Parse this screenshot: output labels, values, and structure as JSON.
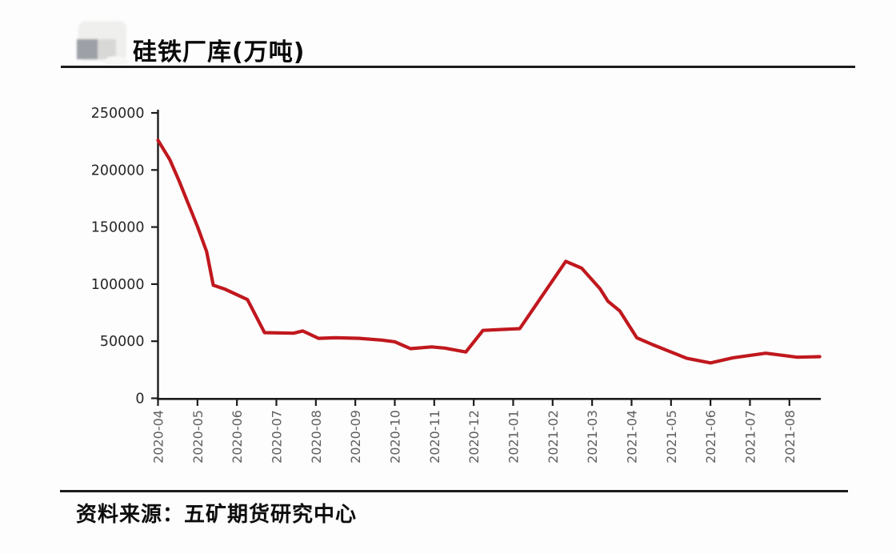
{
  "header": {
    "title": "硅铁厂库(万吨)",
    "logo_name": "blurred-company-logo"
  },
  "footer": {
    "source_label": "资料来源：五矿期货研究中心"
  },
  "chart_data": {
    "type": "line",
    "title": "硅铁厂库(万吨)",
    "xlabel": "",
    "ylabel": "",
    "grid": false,
    "legend": "none",
    "ylim": [
      0,
      250000
    ],
    "y_ticks": [
      0,
      50000,
      100000,
      150000,
      200000,
      250000
    ],
    "y_tick_labels": [
      "0",
      "50000",
      "100000",
      "150000",
      "200000",
      "250000"
    ],
    "x_tick_labels": [
      "2020-04",
      "2020-05",
      "2020-06",
      "2020-07",
      "2020-08",
      "2020-09",
      "2020-10",
      "2020-11",
      "2020-12",
      "2021-01",
      "2021-02",
      "2021-03",
      "2021-04",
      "2021-05",
      "2021-06",
      "2021-07",
      "2021-08"
    ],
    "x_label_rotation": -90,
    "colors": {
      "line": "#c0181e",
      "axis": "#1c1c1c",
      "y_tick_text": "#262626",
      "x_tick_text": "#606060"
    },
    "series": [
      {
        "name": "硅铁厂库",
        "points": [
          [
            "2020-04-01",
            226000
          ],
          [
            "2020-04-10",
            209000
          ],
          [
            "2020-04-17",
            190500
          ],
          [
            "2020-04-24",
            170500
          ],
          [
            "2020-05-01",
            150500
          ],
          [
            "2020-05-08",
            128500
          ],
          [
            "2020-05-13",
            99000
          ],
          [
            "2020-05-22",
            95500
          ],
          [
            "2020-06-09",
            86500
          ],
          [
            "2020-06-22",
            57500
          ],
          [
            "2020-07-14",
            57000
          ],
          [
            "2020-07-21",
            59000
          ],
          [
            "2020-08-03",
            52500
          ],
          [
            "2020-08-16",
            53000
          ],
          [
            "2020-09-04",
            52500
          ],
          [
            "2020-09-21",
            51000
          ],
          [
            "2020-10-01",
            49500
          ],
          [
            "2020-10-13",
            43500
          ],
          [
            "2020-10-29",
            45000
          ],
          [
            "2020-11-09",
            44000
          ],
          [
            "2020-11-25",
            40500
          ],
          [
            "2020-12-08",
            59500
          ],
          [
            "2021-01-06",
            61000
          ],
          [
            "2021-02-11",
            120000
          ],
          [
            "2021-02-23",
            114000
          ],
          [
            "2021-03-07",
            96000
          ],
          [
            "2021-03-13",
            85000
          ],
          [
            "2021-03-22",
            76500
          ],
          [
            "2021-04-05",
            53000
          ],
          [
            "2021-04-17",
            47000
          ],
          [
            "2021-05-01",
            40500
          ],
          [
            "2021-05-13",
            35000
          ],
          [
            "2021-06-01",
            31000
          ],
          [
            "2021-06-18",
            35500
          ],
          [
            "2021-07-13",
            39500
          ],
          [
            "2021-08-07",
            36000
          ],
          [
            "2021-08-24",
            36500
          ]
        ]
      }
    ]
  }
}
